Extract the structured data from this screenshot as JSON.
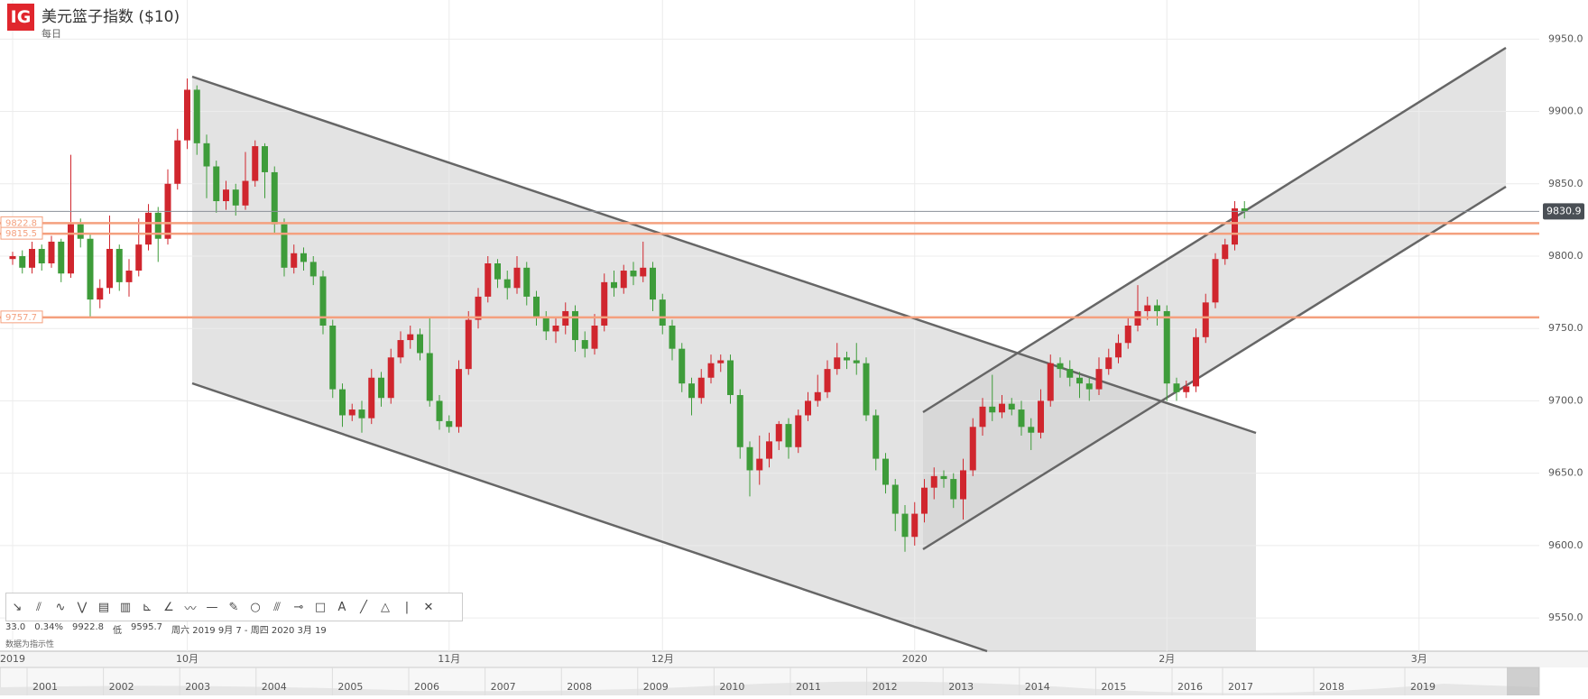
{
  "header": {
    "logo": "IG",
    "title": "美元篮子指数 ($10)",
    "interval": "每日"
  },
  "chart_data": {
    "type": "candlestick",
    "up_color": "#d0262e",
    "down_color": "#3e9c3a",
    "ylim": [
      9527,
      9977
    ],
    "yticks": [
      {
        "value": 9550,
        "label": "9550.0"
      },
      {
        "value": 9600,
        "label": "9600.0"
      },
      {
        "value": 9650,
        "label": "9650.0"
      },
      {
        "value": 9700,
        "label": "9700.0"
      },
      {
        "value": 9750,
        "label": "9750.0"
      },
      {
        "value": 9800,
        "label": "9800.0"
      },
      {
        "value": 9850,
        "label": "9850.0"
      },
      {
        "value": 9900,
        "label": "9900.0"
      },
      {
        "value": 9950,
        "label": "9950.0"
      }
    ],
    "grid": true,
    "levels": [
      9822.8,
      9815.5,
      9757.7
    ],
    "level_color": "#f4a07e",
    "categories": [
      "2019",
      null,
      null,
      null,
      null,
      null,
      null,
      null,
      null,
      null,
      null,
      null,
      null,
      null,
      null,
      null,
      null,
      null,
      "10月",
      null,
      null,
      null,
      null,
      null,
      null,
      null,
      null,
      null,
      null,
      null,
      null,
      null,
      null,
      null,
      null,
      null,
      null,
      null,
      null,
      null,
      null,
      null,
      null,
      null,
      null,
      "11月",
      null,
      null,
      null,
      null,
      null,
      null,
      null,
      null,
      null,
      null,
      null,
      null,
      null,
      null,
      null,
      null,
      null,
      null,
      null,
      null,
      null,
      "12月",
      null,
      null,
      null,
      null,
      null,
      null,
      null,
      null,
      null,
      null,
      null,
      null,
      null,
      null,
      null,
      null,
      null,
      null,
      null,
      null,
      null,
      null,
      null,
      null,
      null,
      "2020",
      null,
      null,
      null,
      null,
      null,
      null,
      null,
      null,
      null,
      null,
      null,
      null,
      null,
      null,
      null,
      null,
      null,
      null,
      null,
      null,
      null,
      null,
      null,
      null,
      null,
      "2月",
      null,
      null,
      null,
      null,
      null,
      null,
      null,
      null,
      null,
      null,
      null,
      null,
      null,
      null,
      null,
      null,
      null,
      null,
      null,
      null,
      null,
      null,
      null,
      null,
      null,
      "3月",
      null,
      null,
      null,
      null,
      null,
      null,
      null,
      null,
      null,
      null,
      null,
      null
    ],
    "open": [
      9798,
      9800,
      9792,
      9805,
      9795,
      9810,
      9788,
      9822,
      9812,
      9770,
      9778,
      9805,
      9782,
      9790,
      9808,
      9830,
      9812,
      9850,
      9880,
      9915,
      9878,
      9862,
      9838,
      9846,
      9835,
      9852,
      9876,
      9858,
      9822,
      9792,
      9802,
      9796,
      9786,
      9752,
      9708,
      9690,
      9694,
      9688,
      9716,
      9702,
      9730,
      9742,
      9746,
      9733,
      9700,
      9686,
      9682,
      9722,
      9756,
      9772,
      9795,
      9784,
      9778,
      9792,
      9772,
      9758,
      9748,
      9752,
      9762,
      9742,
      9736,
      9752,
      9782,
      9778,
      9790,
      9786,
      9792,
      9770,
      9752,
      9736,
      9712,
      9702,
      9716,
      9726,
      9728,
      9704,
      9668,
      9652,
      9660,
      9672,
      9684,
      9668,
      9690,
      9700,
      9706,
      9722,
      9730,
      9728,
      9726,
      9690,
      9660,
      9642,
      9622,
      9606,
      9622,
      9640,
      9648,
      9646,
      9632,
      9652,
      9682,
      9696,
      9692,
      9698,
      9694,
      9682,
      9678,
      9700,
      9726,
      9722,
      9716,
      9712,
      9708,
      9722,
      9730,
      9740,
      9752,
      9762,
      9766,
      9762,
      9712,
      9706,
      9710,
      9744,
      9768,
      9798,
      9808,
      9833,
      null,
      null,
      null,
      null,
      null,
      null,
      null,
      null,
      null,
      null,
      null,
      null,
      null,
      null,
      null,
      null,
      null,
      null,
      null,
      null,
      null,
      null,
      null,
      null,
      null,
      null,
      null,
      null,
      null,
      null
    ],
    "high": [
      9803,
      9804,
      9810,
      9808,
      9814,
      9812,
      9870,
      9826,
      9815,
      9784,
      9828,
      9808,
      9798,
      9826,
      9836,
      9834,
      9860,
      9888,
      9922.8,
      9918,
      9884,
      9866,
      9852,
      9850,
      9872,
      9880,
      9878,
      9862,
      9826,
      9808,
      9806,
      9800,
      9790,
      9756,
      9712,
      9698,
      9700,
      9722,
      9720,
      9736,
      9748,
      9752,
      9750,
      9758,
      9704,
      9690,
      9728,
      9762,
      9778,
      9800,
      9798,
      9790,
      9800,
      9796,
      9776,
      9762,
      9758,
      9768,
      9766,
      9748,
      9760,
      9788,
      9790,
      9794,
      9796,
      9810,
      9796,
      9774,
      9756,
      9740,
      9716,
      9722,
      9732,
      9732,
      9732,
      9708,
      9672,
      9676,
      9678,
      9686,
      9688,
      9694,
      9706,
      9718,
      9728,
      9740,
      9734,
      9740,
      9730,
      9694,
      9664,
      9646,
      9628,
      9630,
      9646,
      9654,
      9652,
      9650,
      9660,
      9688,
      9702,
      9718,
      9704,
      9702,
      9700,
      9688,
      9708,
      9732,
      9730,
      9728,
      9720,
      9716,
      9730,
      9736,
      9746,
      9758,
      9780,
      9772,
      9770,
      9766,
      9716,
      9714,
      9750,
      9774,
      9802,
      9812,
      9838,
      9838,
      null,
      null,
      null,
      null,
      null,
      null,
      null,
      null,
      null,
      null,
      null,
      null,
      null,
      null,
      null,
      null,
      null,
      null,
      null,
      null,
      null,
      null,
      null,
      null,
      null,
      null,
      null,
      null,
      null,
      null
    ],
    "low": [
      9794,
      9788,
      9788,
      9790,
      9792,
      9782,
      9785,
      9806,
      9758,
      9764,
      9774,
      9776,
      9772,
      9786,
      9804,
      9796,
      9808,
      9846,
      9874,
      9870,
      9840,
      9830,
      9832,
      9828,
      9832,
      9848,
      9840,
      9815,
      9786,
      9788,
      9790,
      9780,
      9746,
      9702,
      9682,
      9686,
      9678,
      9684,
      9696,
      9698,
      9726,
      9736,
      9728,
      9696,
      9680,
      9678,
      9678,
      9718,
      9750,
      9768,
      9778,
      9770,
      9774,
      9766,
      9752,
      9742,
      9740,
      9746,
      9734,
      9730,
      9732,
      9748,
      9772,
      9774,
      9780,
      9782,
      9762,
      9746,
      9728,
      9706,
      9690,
      9698,
      9712,
      9720,
      9698,
      9660,
      9634,
      9642,
      9654,
      9666,
      9660,
      9664,
      9686,
      9696,
      9702,
      9718,
      9722,
      9718,
      9686,
      9652,
      9636,
      9610,
      9595.7,
      9600,
      9616,
      9632,
      9640,
      9626,
      9618,
      9648,
      9676,
      9686,
      9688,
      9690,
      9676,
      9666,
      9674,
      9696,
      9716,
      9710,
      9702,
      9700,
      9704,
      9718,
      9726,
      9736,
      9748,
      9756,
      9752,
      9700,
      9700,
      9702,
      9706,
      9740,
      9764,
      9794,
      9804,
      9826,
      null,
      null,
      null,
      null,
      null,
      null,
      null,
      null,
      null,
      null,
      null,
      null,
      null,
      null,
      null,
      null,
      null,
      null,
      null,
      null,
      null,
      null,
      null,
      null,
      null,
      null,
      null,
      null,
      null,
      null
    ],
    "close": [
      9800,
      9792,
      9805,
      9795,
      9810,
      9788,
      9822,
      9812,
      9770,
      9778,
      9805,
      9782,
      9790,
      9808,
      9830,
      9812,
      9850,
      9880,
      9915,
      9878,
      9862,
      9838,
      9846,
      9835,
      9852,
      9876,
      9858,
      9822,
      9792,
      9802,
      9796,
      9786,
      9752,
      9708,
      9690,
      9694,
      9688,
      9716,
      9702,
      9730,
      9742,
      9746,
      9733,
      9700,
      9686,
      9682,
      9722,
      9756,
      9772,
      9795,
      9784,
      9778,
      9792,
      9772,
      9758,
      9748,
      9752,
      9762,
      9742,
      9736,
      9752,
      9782,
      9778,
      9790,
      9786,
      9792,
      9770,
      9752,
      9736,
      9712,
      9702,
      9716,
      9726,
      9728,
      9704,
      9668,
      9652,
      9660,
      9672,
      9684,
      9668,
      9690,
      9700,
      9706,
      9722,
      9730,
      9728,
      9726,
      9690,
      9660,
      9642,
      9622,
      9606,
      9622,
      9640,
      9648,
      9646,
      9632,
      9652,
      9682,
      9696,
      9692,
      9698,
      9694,
      9682,
      9678,
      9700,
      9726,
      9722,
      9716,
      9712,
      9708,
      9722,
      9730,
      9740,
      9752,
      9762,
      9766,
      9762,
      9712,
      9706,
      9710,
      9744,
      9768,
      9798,
      9808,
      9833,
      9830.9,
      null,
      null,
      null,
      null,
      null,
      null,
      null,
      null,
      null,
      null,
      null,
      null,
      null,
      null,
      null,
      null,
      null,
      null,
      null,
      null,
      null,
      null,
      null,
      null,
      null,
      null,
      null,
      null,
      null,
      null
    ]
  },
  "info": {
    "change": "33.0",
    "change_pct": "0.34%",
    "high": "9922.8",
    "low_label": "低",
    "low": "9595.7",
    "range": "周六 2019 9月 7 - 周四 2020 3月 19",
    "note": "数据为指示性"
  },
  "navigator": {
    "years": [
      "2001",
      "2002",
      "2003",
      "2004",
      "2005",
      "2006",
      "2007",
      "2008",
      "2009",
      "2010",
      "2011",
      "2012",
      "2013",
      "2014",
      "2015",
      "2016",
      "2017",
      "2018",
      "2019"
    ]
  }
}
